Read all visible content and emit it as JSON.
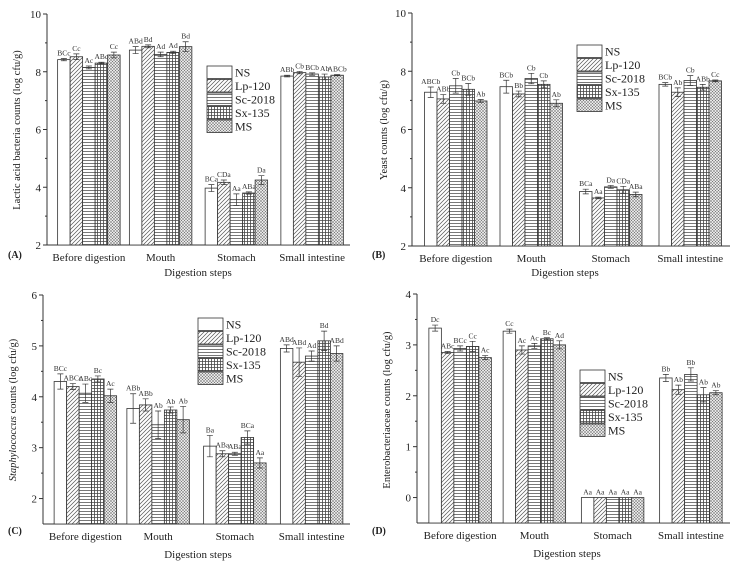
{
  "chart_data": [
    {
      "type": "bar",
      "panel_label": "(A)",
      "xlabel": "Digestion steps",
      "ylabel": "Lactic acid bacteria counts (log cfu/g)",
      "ylim": [
        2,
        10
      ],
      "yticks": [
        2,
        4,
        6,
        8,
        10
      ],
      "categories": [
        "Before digestion",
        "Mouth",
        "Stomach",
        "Small intestine"
      ],
      "legend_position": "center",
      "series": [
        {
          "name": "NS",
          "values": [
            8.42,
            8.75,
            3.97,
            7.85
          ],
          "errors": [
            0.04,
            0.12,
            0.12,
            0.03
          ],
          "labels": [
            "BCc",
            "ABd",
            "BCa",
            "ABb"
          ]
        },
        {
          "name": "Lp-120",
          "values": [
            8.52,
            8.88,
            4.17,
            7.97
          ],
          "errors": [
            0.1,
            0.05,
            0.08,
            0.04
          ],
          "labels": [
            "Cc",
            "Bd",
            "CDa",
            "Cb"
          ]
        },
        {
          "name": "Sc-2018",
          "values": [
            8.15,
            8.6,
            3.57,
            7.92
          ],
          "errors": [
            0.05,
            0.08,
            0.2,
            0.04
          ],
          "labels": [
            "Ac",
            "Ad",
            "Aa",
            "BCb"
          ]
        },
        {
          "name": "Sx-135",
          "values": [
            8.3,
            8.67,
            3.8,
            7.82
          ],
          "errors": [
            0.03,
            0.04,
            0.04,
            0.1
          ],
          "labels": [
            "ABc",
            "Ad",
            "ABa",
            "Ab"
          ]
        },
        {
          "name": "MS",
          "values": [
            8.58,
            8.87,
            4.25,
            7.88
          ],
          "errors": [
            0.1,
            0.17,
            0.15,
            0.02
          ],
          "labels": [
            "Cc",
            "Bd",
            "Da",
            "ABCb"
          ]
        }
      ]
    },
    {
      "type": "bar",
      "panel_label": "(B)",
      "xlabel": "Digestion steps",
      "ylabel": "Yeast counts (log cfu/g)",
      "ylim": [
        2,
        10
      ],
      "yticks": [
        2,
        4,
        6,
        8,
        10
      ],
      "categories": [
        "Before digestion",
        "Mouth",
        "Stomach",
        "Small intestine"
      ],
      "legend_position": "top-center",
      "series": [
        {
          "name": "NS",
          "values": [
            7.28,
            7.47,
            3.87,
            7.55
          ],
          "errors": [
            0.18,
            0.22,
            0.08,
            0.06
          ],
          "labels": [
            "ABCb",
            "BCb",
            "BCa",
            "BCb"
          ]
        },
        {
          "name": "Lp-120",
          "values": [
            7.05,
            7.22,
            3.65,
            7.28
          ],
          "errors": [
            0.15,
            0.1,
            0.03,
            0.15
          ],
          "labels": [
            "ABb",
            "Bb",
            "Aa",
            "Ab"
          ]
        },
        {
          "name": "Sc-2018",
          "values": [
            7.5,
            7.75,
            4.03,
            7.68
          ],
          "errors": [
            0.25,
            0.18,
            0.05,
            0.17
          ],
          "labels": [
            "Cb",
            "Cb",
            "Da",
            "Cb"
          ]
        },
        {
          "name": "Sx-135",
          "values": [
            7.38,
            7.55,
            3.93,
            7.45
          ],
          "errors": [
            0.2,
            0.12,
            0.12,
            0.1
          ],
          "labels": [
            "BCb",
            "Cb",
            "CDa",
            "ABb"
          ]
        },
        {
          "name": "MS",
          "values": [
            6.98,
            6.9,
            3.77,
            7.67
          ],
          "errors": [
            0.05,
            0.12,
            0.08,
            0.03
          ],
          "labels": [
            "Ab",
            "Ab",
            "ABa",
            "Cc"
          ]
        }
      ]
    },
    {
      "type": "bar",
      "panel_label": "(C)",
      "xlabel": "Digestion steps",
      "ylabel_italic": "Staphylococcus",
      "ylabel": " counts (log cfu/g)",
      "ylim": [
        1.5,
        6
      ],
      "yticks": [
        2,
        3,
        4,
        5,
        6
      ],
      "categories": [
        "Before digestion",
        "Mouth",
        "Stomach",
        "Small intestine"
      ],
      "legend_position": "top-center",
      "series": [
        {
          "name": "NS",
          "values": [
            4.3,
            3.77,
            3.03,
            4.95
          ],
          "errors": [
            0.15,
            0.29,
            0.21,
            0.07
          ],
          "labels": [
            "BCc",
            "ABb",
            "Ba",
            "ABd"
          ]
        },
        {
          "name": "Lp-120",
          "values": [
            4.2,
            3.84,
            2.88,
            4.68
          ],
          "errors": [
            0.06,
            0.12,
            0.06,
            0.28
          ],
          "labels": [
            "ABCc",
            "ABb",
            "ABa",
            "ABd"
          ]
        },
        {
          "name": "Sc-2018",
          "values": [
            4.07,
            3.45,
            2.88,
            4.8
          ],
          "errors": [
            0.18,
            0.27,
            0.03,
            0.1
          ],
          "labels": [
            "ABc",
            "Ab",
            "ABa",
            "Ad"
          ]
        },
        {
          "name": "Sx-135",
          "values": [
            4.35,
            3.74,
            3.2,
            5.1
          ],
          "errors": [
            0.06,
            0.06,
            0.13,
            0.19
          ],
          "labels": [
            "Bc",
            "Ab",
            "BCa",
            "Bd"
          ]
        },
        {
          "name": "MS",
          "values": [
            4.02,
            3.55,
            2.7,
            4.85
          ],
          "errors": [
            0.13,
            0.26,
            0.1,
            0.15
          ],
          "labels": [
            "Ac",
            "Ab",
            "Aa",
            "ABd"
          ]
        }
      ]
    },
    {
      "type": "bar",
      "panel_label": "(D)",
      "xlabel": "Digestion steps",
      "ylabel": "Enterobacteriaceae counts (log cfu/g)",
      "ylim": [
        -0.5,
        4
      ],
      "yticks": [
        0,
        1,
        2,
        3,
        4
      ],
      "categories": [
        "Before digestion",
        "Mouth",
        "Stomach",
        "Small intestine"
      ],
      "legend_position": "center-right",
      "series": [
        {
          "name": "NS",
          "values": [
            3.33,
            3.27,
            0,
            2.35
          ],
          "errors": [
            0.06,
            0.04,
            0,
            0.07
          ],
          "labels": [
            "Dc",
            "Cc",
            "Aa",
            "Bb"
          ]
        },
        {
          "name": "Lp-120",
          "values": [
            2.85,
            2.9,
            0,
            2.12
          ],
          "errors": [
            0.02,
            0.08,
            0,
            0.09
          ],
          "labels": [
            "ABc",
            "Ac",
            "Aa",
            "Ab"
          ]
        },
        {
          "name": "Sc-2018",
          "values": [
            2.93,
            2.98,
            0,
            2.42
          ],
          "errors": [
            0.05,
            0.05,
            0,
            0.13
          ],
          "labels": [
            "BCc",
            "Ac",
            "Aa",
            "Bb"
          ]
        },
        {
          "name": "Sx-135",
          "values": [
            2.97,
            3.12,
            0,
            2.02
          ],
          "errors": [
            0.1,
            0.02,
            0,
            0.14
          ],
          "labels": [
            "Cc",
            "Bc",
            "Aa",
            "Ab"
          ]
        },
        {
          "name": "MS",
          "values": [
            2.75,
            3.0,
            0,
            2.06
          ],
          "errors": [
            0.04,
            0.08,
            0,
            0.04
          ],
          "labels": [
            "Ac",
            "Ad",
            "Aa",
            "Ab"
          ]
        }
      ]
    }
  ]
}
